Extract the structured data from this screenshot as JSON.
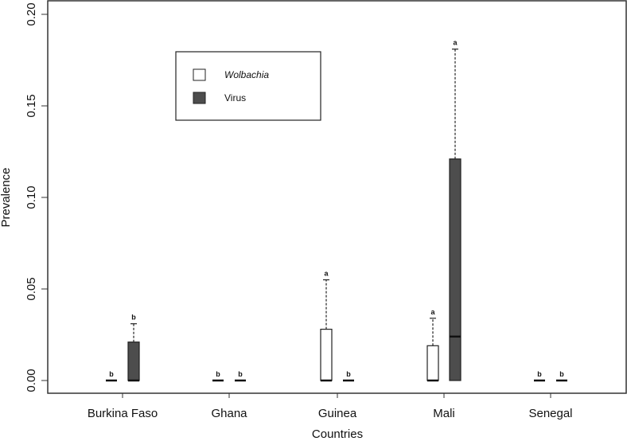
{
  "chart_data": {
    "type": "boxplot",
    "title": "",
    "xlabel": "Countries",
    "ylabel": "Prevalence",
    "ylim": [
      0,
      0.2
    ],
    "yticks": [
      "0.00",
      "0.05",
      "0.10",
      "0.15",
      "0.20"
    ],
    "categories": [
      "Burkina Faso",
      "Ghana",
      "Guinea",
      "Mali",
      "Senegal"
    ],
    "legend": {
      "position": "top-left",
      "entries": [
        {
          "label": "Wolbachia",
          "fill": "#ffffff",
          "italic": true
        },
        {
          "label": "Virus",
          "fill": "#4d4d4d",
          "italic": false
        }
      ]
    },
    "series": [
      {
        "name": "Wolbachia",
        "fill": "#ffffff",
        "boxes": [
          {
            "category": "Burkina Faso",
            "min": 0,
            "q1": 0,
            "median": 0,
            "q3": 0,
            "max": 0,
            "letter": "b"
          },
          {
            "category": "Ghana",
            "min": 0,
            "q1": 0,
            "median": 0,
            "q3": 0,
            "max": 0,
            "letter": "b"
          },
          {
            "category": "Guinea",
            "min": 0,
            "q1": 0,
            "median": 0,
            "q3": 0.028,
            "max": 0.055,
            "letter": "a"
          },
          {
            "category": "Mali",
            "min": 0,
            "q1": 0,
            "median": 0,
            "q3": 0.019,
            "max": 0.034,
            "letter": "a"
          },
          {
            "category": "Senegal",
            "min": 0,
            "q1": 0,
            "median": 0,
            "q3": 0,
            "max": 0,
            "letter": "b"
          }
        ]
      },
      {
        "name": "Virus",
        "fill": "#4d4d4d",
        "boxes": [
          {
            "category": "Burkina Faso",
            "min": 0,
            "q1": 0,
            "median": 0,
            "q3": 0.021,
            "max": 0.031,
            "letter": "b"
          },
          {
            "category": "Ghana",
            "min": 0,
            "q1": 0,
            "median": 0,
            "q3": 0,
            "max": 0,
            "letter": "b"
          },
          {
            "category": "Guinea",
            "min": 0,
            "q1": 0,
            "median": 0,
            "q3": 0,
            "max": 0,
            "letter": "b"
          },
          {
            "category": "Mali",
            "min": 0,
            "q1": 0,
            "median": 0.024,
            "q3": 0.121,
            "max": 0.181,
            "letter": "a"
          },
          {
            "category": "Senegal",
            "min": 0,
            "q1": 0,
            "median": 0,
            "q3": 0,
            "max": 0,
            "letter": "b"
          }
        ]
      }
    ]
  }
}
